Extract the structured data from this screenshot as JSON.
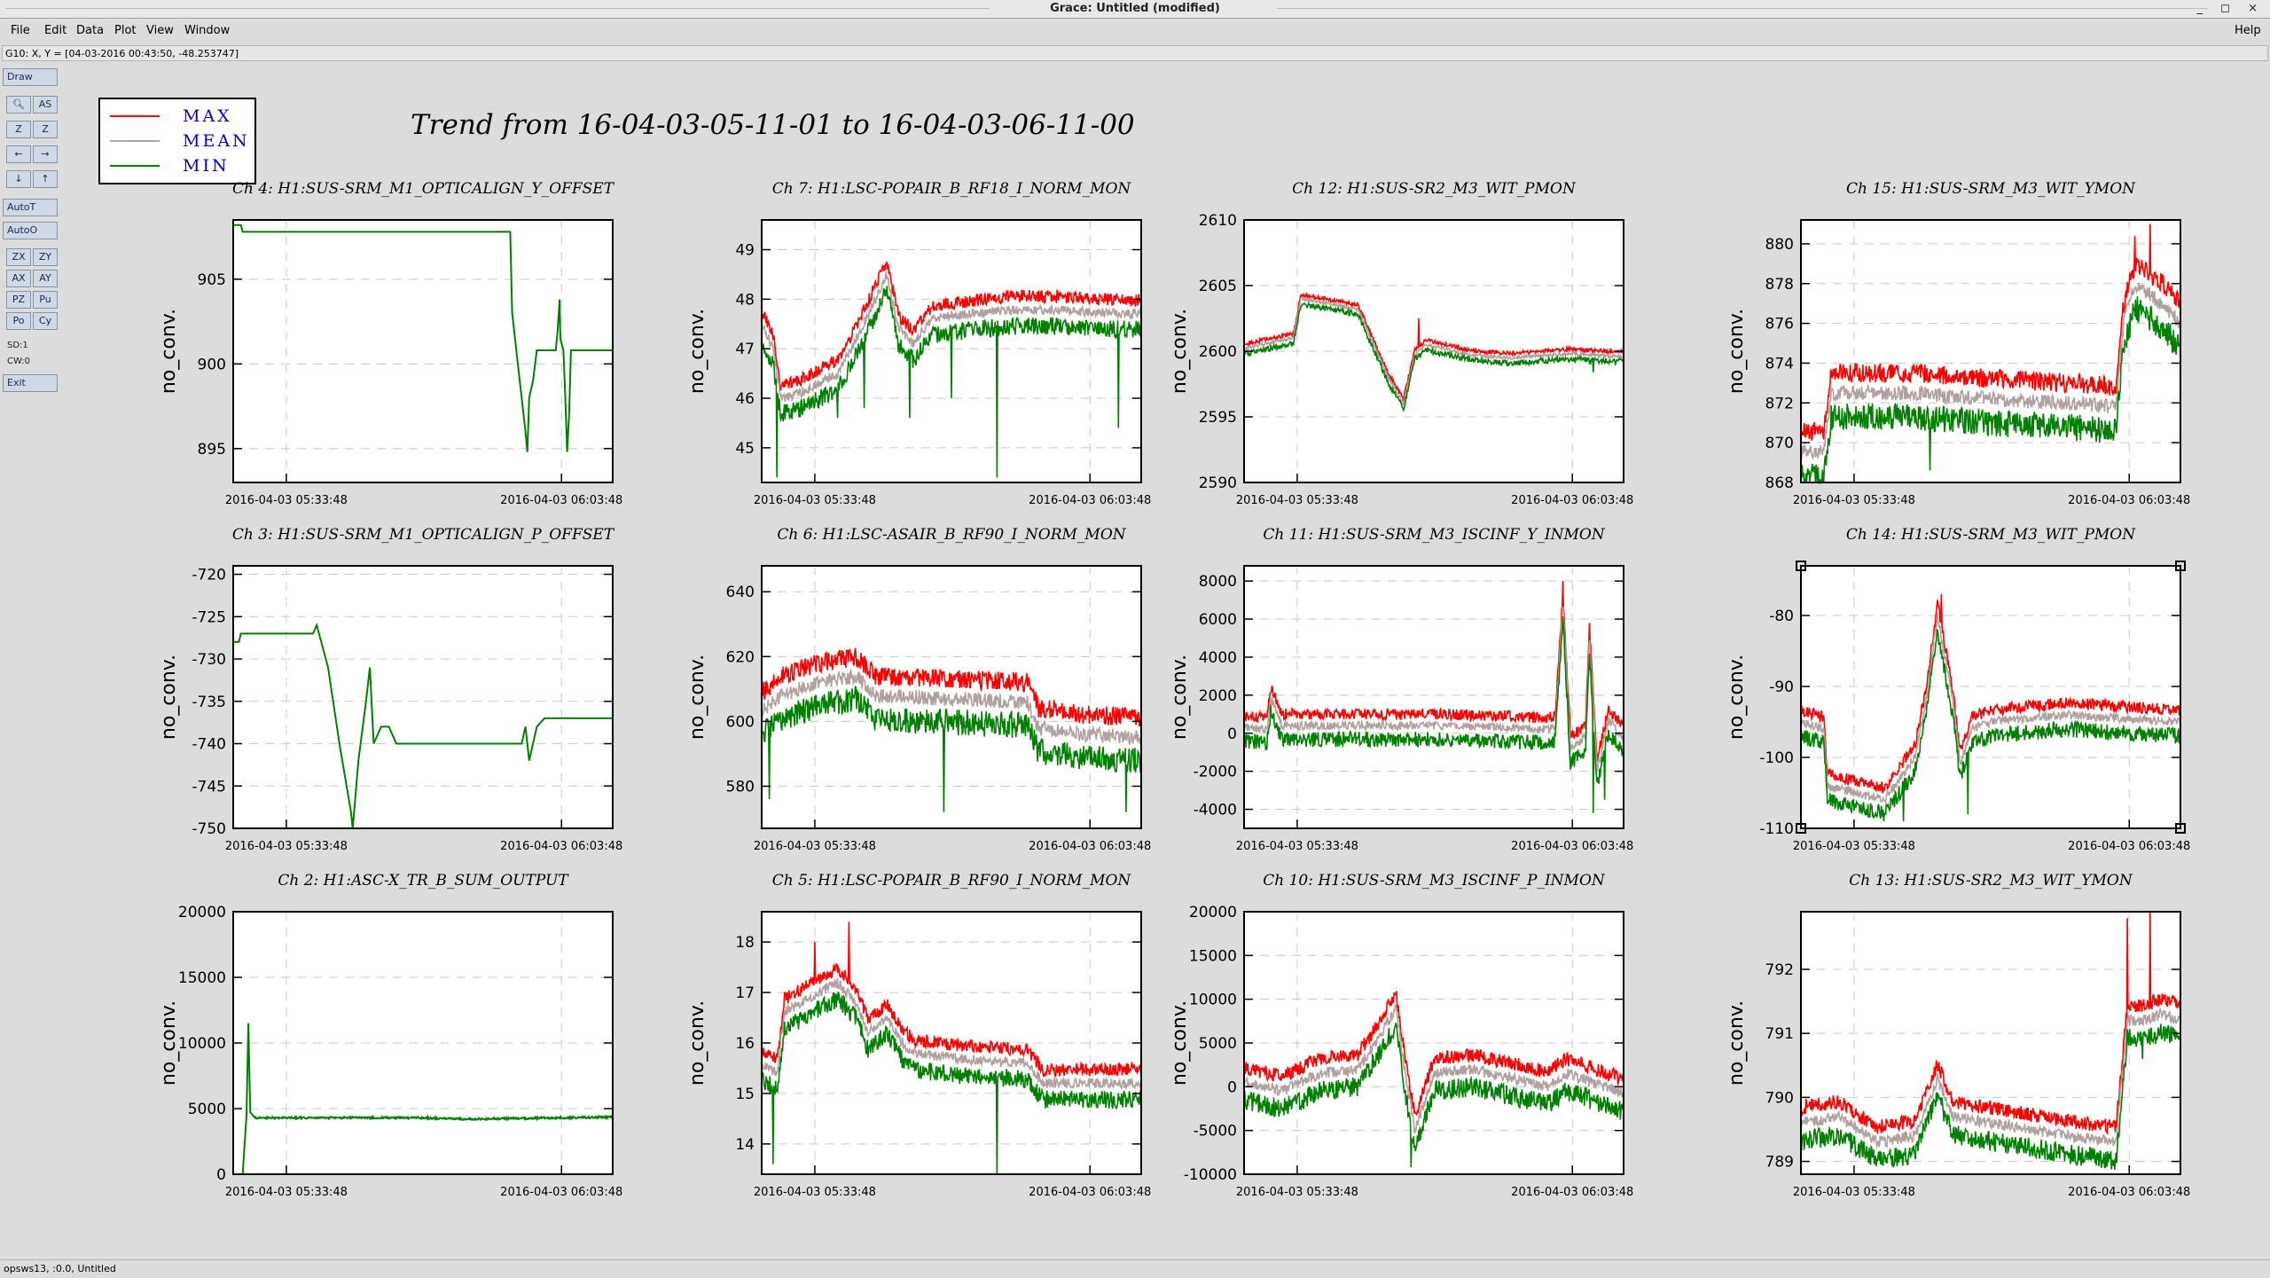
{
  "window": {
    "title": "Grace: Untitled (modified)",
    "controls": "_ ◻ ×"
  },
  "menu": {
    "file": "File",
    "edit": "Edit",
    "data": "Data",
    "plot": "Plot",
    "view": "View",
    "window": "Window",
    "help": "Help"
  },
  "locator": "G10: X, Y = [04-03-2016 00:43:50, -48.253747]",
  "toolbar": {
    "draw": "Draw",
    "autot": "AutoT",
    "autoo": "AutoO",
    "exit": "Exit",
    "sd": "SD:1",
    "cw": "CW:0",
    "zx": "ZX",
    "zy": "ZY",
    "ax": "AX",
    "ay": "AY",
    "pz": "PZ",
    "pu": "Pu",
    "po": "Po",
    "cy": "Cy",
    "as": "AS",
    "z": "Z"
  },
  "status": "opsws13, :0.0, Untitled",
  "main_title": "Trend from 16-04-03-05-11-01 to 16-04-03-06-11-00",
  "legend": {
    "max": "MAX",
    "mean": "MEAN",
    "min": "MIN"
  },
  "colors": {
    "max": "#ff0000",
    "mean": "#b0a0a0",
    "min": "#008000"
  },
  "x_ticks": [
    "2016-04-03 05:33:48",
    "2016-04-03 06:03:48"
  ],
  "chart_data": [
    {
      "type": "line",
      "title": "Ch 4: H1:SUS-SRM_M1_OPTICALIGN_Y_OFFSET",
      "ylabel": "no_conv.",
      "ylim": [
        893,
        908.5
      ],
      "yticks": [
        895,
        900,
        905
      ],
      "min_series": [
        [
          0,
          908.2
        ],
        [
          0.02,
          908.2
        ],
        [
          0.025,
          907.8
        ],
        [
          0.73,
          907.8
        ],
        [
          0.735,
          903
        ],
        [
          0.75,
          900
        ],
        [
          0.77,
          896
        ],
        [
          0.775,
          894.8
        ],
        [
          0.78,
          898
        ],
        [
          0.79,
          899
        ],
        [
          0.8,
          900.8
        ],
        [
          0.85,
          900.8
        ],
        [
          0.855,
          902
        ],
        [
          0.86,
          903.8
        ],
        [
          0.862,
          901.5
        ],
        [
          0.87,
          900.8
        ],
        [
          0.875,
          898
        ],
        [
          0.88,
          894.8
        ],
        [
          0.885,
          897
        ],
        [
          0.89,
          900.8
        ],
        [
          1,
          900.8
        ]
      ]
    },
    {
      "type": "line",
      "title": "Ch 7: H1:LSC-POPAIR_B_RF18_I_NORM_MON",
      "ylabel": "no_conv.",
      "ylim": [
        44.3,
        49.6
      ],
      "yticks": [
        45,
        46,
        47,
        48,
        49
      ],
      "base": [
        [
          0,
          47.5
        ],
        [
          0.03,
          47
        ],
        [
          0.05,
          46
        ],
        [
          0.1,
          46.1
        ],
        [
          0.2,
          46.5
        ],
        [
          0.25,
          47.2
        ],
        [
          0.3,
          48
        ],
        [
          0.33,
          48.5
        ],
        [
          0.36,
          47.4
        ],
        [
          0.4,
          47.1
        ],
        [
          0.45,
          47.6
        ],
        [
          0.55,
          47.7
        ],
        [
          0.7,
          47.8
        ],
        [
          1,
          47.7
        ]
      ],
      "noise": 0.4,
      "spikes": [
        [
          0.04,
          44.4
        ],
        [
          0.2,
          45.6
        ],
        [
          0.27,
          45.8
        ],
        [
          0.39,
          45.6
        ],
        [
          0.5,
          46
        ],
        [
          0.62,
          44.4
        ],
        [
          0.94,
          45.4
        ]
      ]
    },
    {
      "type": "line",
      "title": "Ch 12: H1:SUS-SR2_M3_WIT_PMON",
      "ylabel": "no_conv.",
      "ylim": [
        2590,
        2610
      ],
      "yticks": [
        2590,
        2595,
        2600,
        2605,
        2610
      ],
      "base": [
        [
          0,
          2600.2
        ],
        [
          0.13,
          2601
        ],
        [
          0.15,
          2604
        ],
        [
          0.3,
          2603.2
        ],
        [
          0.38,
          2598
        ],
        [
          0.42,
          2596
        ],
        [
          0.45,
          2599.8
        ],
        [
          0.48,
          2600.5
        ],
        [
          0.6,
          2599.7
        ],
        [
          0.7,
          2599.5
        ],
        [
          0.85,
          2599.8
        ],
        [
          1,
          2599.6
        ]
      ],
      "noise": 0.5,
      "spikes": [
        [
          0.46,
          2602.5
        ],
        [
          0.92,
          2598.4
        ]
      ]
    },
    {
      "type": "line",
      "title": "Ch 15: H1:SUS-SRM_M3_WIT_YMON",
      "ylabel": "no_conv.",
      "ylim": [
        868,
        881.2
      ],
      "yticks": [
        868,
        870,
        872,
        874,
        876,
        878,
        880
      ],
      "base": [
        [
          0,
          869.5
        ],
        [
          0.06,
          869.6
        ],
        [
          0.08,
          872.5
        ],
        [
          0.3,
          872.5
        ],
        [
          0.5,
          872.2
        ],
        [
          0.7,
          872
        ],
        [
          0.83,
          871.8
        ],
        [
          0.85,
          876
        ],
        [
          0.88,
          878
        ],
        [
          0.95,
          877
        ],
        [
          1,
          876
        ]
      ],
      "noise": 1.5,
      "spikes": [
        [
          0.88,
          880.4
        ],
        [
          0.92,
          881
        ],
        [
          0.34,
          868.6
        ]
      ]
    },
    {
      "type": "line",
      "title": "Ch 3: H1:SUS-SRM_M1_OPTICALIGN_P_OFFSET",
      "ylabel": "no_conv.",
      "ylim": [
        -750,
        -719
      ],
      "yticks": [
        -750,
        -745,
        -740,
        -735,
        -730,
        -725,
        -720
      ],
      "min_series": [
        [
          0,
          -728
        ],
        [
          0.015,
          -728
        ],
        [
          0.02,
          -727
        ],
        [
          0.21,
          -727
        ],
        [
          0.22,
          -726
        ],
        [
          0.25,
          -731
        ],
        [
          0.28,
          -740
        ],
        [
          0.31,
          -748
        ],
        [
          0.315,
          -750
        ],
        [
          0.33,
          -742
        ],
        [
          0.35,
          -735
        ],
        [
          0.36,
          -731
        ],
        [
          0.37,
          -740
        ],
        [
          0.39,
          -738
        ],
        [
          0.41,
          -738
        ],
        [
          0.43,
          -740
        ],
        [
          0.76,
          -740
        ],
        [
          0.77,
          -738
        ],
        [
          0.78,
          -742
        ],
        [
          0.8,
          -738
        ],
        [
          0.82,
          -737
        ],
        [
          1,
          -737
        ]
      ]
    },
    {
      "type": "line",
      "title": "Ch 6: H1:LSC-ASAIR_B_RF90_I_NORM_MON",
      "ylabel": "no_conv.",
      "ylim": [
        567,
        648
      ],
      "yticks": [
        580,
        600,
        620,
        640
      ],
      "base": [
        [
          0,
          603
        ],
        [
          0.05,
          608
        ],
        [
          0.15,
          612
        ],
        [
          0.25,
          614
        ],
        [
          0.3,
          608
        ],
        [
          0.5,
          607
        ],
        [
          0.7,
          606
        ],
        [
          0.73,
          598
        ],
        [
          0.85,
          596
        ],
        [
          1,
          595
        ]
      ],
      "noise": 9,
      "spikes": [
        [
          0.02,
          576
        ],
        [
          0.48,
          572
        ],
        [
          0.96,
          572
        ]
      ]
    },
    {
      "type": "line",
      "title": "Ch 11: H1:SUS-SRM_M3_ISCINF_Y_INMON",
      "ylabel": "no_conv.",
      "ylim": [
        -5000,
        8800
      ],
      "yticks": [
        -4000,
        -2000,
        0,
        2000,
        4000,
        6000,
        8000
      ],
      "base": [
        [
          0,
          300
        ],
        [
          0.06,
          200
        ],
        [
          0.07,
          1800
        ],
        [
          0.1,
          400
        ],
        [
          0.5,
          400
        ],
        [
          0.7,
          300
        ],
        [
          0.8,
          200
        ],
        [
          0.82,
          300
        ],
        [
          0.84,
          6800
        ],
        [
          0.86,
          -800
        ],
        [
          0.9,
          -200
        ],
        [
          0.91,
          5000
        ],
        [
          0.93,
          -2000
        ],
        [
          0.96,
          700
        ],
        [
          1,
          -300
        ]
      ],
      "noise": 900,
      "spikes": [
        [
          0.84,
          8000
        ],
        [
          0.92,
          -4200
        ],
        [
          0.95,
          -3500
        ]
      ]
    },
    {
      "type": "line",
      "title": "Ch 14: H1:SUS-SRM_M3_WIT_PMON",
      "ylabel": "no_conv.",
      "ylim": [
        -110,
        -73
      ],
      "yticks": [
        -110,
        -100,
        -90,
        -80
      ],
      "base": [
        [
          0,
          -95
        ],
        [
          0.06,
          -96
        ],
        [
          0.07,
          -104
        ],
        [
          0.22,
          -106
        ],
        [
          0.3,
          -100
        ],
        [
          0.33,
          -92
        ],
        [
          0.36,
          -80
        ],
        [
          0.4,
          -92
        ],
        [
          0.42,
          -101
        ],
        [
          0.45,
          -96
        ],
        [
          0.5,
          -95
        ],
        [
          0.7,
          -94
        ],
        [
          1,
          -95
        ]
      ],
      "noise": 2.5,
      "spikes": [
        [
          0.27,
          -109
        ],
        [
          0.37,
          -77
        ],
        [
          0.44,
          -108
        ]
      ]
    },
    {
      "type": "line",
      "title": "Ch 2: H1:ASC-X_TR_B_SUM_OUTPUT",
      "ylabel": "no_conv.",
      "ylim": [
        0,
        20000
      ],
      "yticks": [
        0,
        5000,
        10000,
        15000,
        20000
      ],
      "min_series": [
        [
          0,
          0
        ],
        [
          0.025,
          0
        ],
        [
          0.035,
          4500
        ],
        [
          0.04,
          11500
        ],
        [
          0.045,
          4700
        ],
        [
          0.06,
          4300
        ],
        [
          0.5,
          4300
        ],
        [
          0.6,
          4200
        ],
        [
          1,
          4350
        ]
      ],
      "noise": 150
    },
    {
      "type": "line",
      "title": "Ch 5: H1:LSC-POPAIR_B_RF90_I_NORM_MON",
      "ylabel": "no_conv.",
      "ylim": [
        13.4,
        18.6
      ],
      "yticks": [
        14,
        15,
        16,
        17,
        18
      ],
      "base": [
        [
          0,
          15.6
        ],
        [
          0.04,
          15.4
        ],
        [
          0.06,
          16.6
        ],
        [
          0.15,
          17
        ],
        [
          0.2,
          17.2
        ],
        [
          0.25,
          16.8
        ],
        [
          0.28,
          16.2
        ],
        [
          0.33,
          16.5
        ],
        [
          0.37,
          16
        ],
        [
          0.4,
          15.8
        ],
        [
          0.5,
          15.7
        ],
        [
          0.7,
          15.6
        ],
        [
          0.74,
          15.2
        ],
        [
          1,
          15.2
        ]
      ],
      "noise": 0.4,
      "spikes": [
        [
          0.03,
          13.6
        ],
        [
          0.14,
          18
        ],
        [
          0.23,
          18.4
        ],
        [
          0.62,
          13.4
        ]
      ]
    },
    {
      "type": "line",
      "title": "Ch 10: H1:SUS-SRM_M3_ISCINF_P_INMON",
      "ylabel": "no_conv.",
      "ylim": [
        -10000,
        20000
      ],
      "yticks": [
        -10000,
        -5000,
        0,
        5000,
        10000,
        15000,
        20000
      ],
      "base": [
        [
          0,
          500
        ],
        [
          0.1,
          -500
        ],
        [
          0.2,
          1500
        ],
        [
          0.3,
          2000
        ],
        [
          0.36,
          6000
        ],
        [
          0.4,
          9000
        ],
        [
          0.43,
          0
        ],
        [
          0.45,
          -5000
        ],
        [
          0.5,
          1500
        ],
        [
          0.6,
          2000
        ],
        [
          0.7,
          1000
        ],
        [
          0.8,
          0
        ],
        [
          0.85,
          1500
        ],
        [
          0.95,
          0
        ],
        [
          1,
          -800
        ]
      ],
      "noise": 2500,
      "spikes": [
        [
          0.44,
          -9200
        ],
        [
          0.38,
          10000
        ]
      ]
    },
    {
      "type": "line",
      "title": "Ch 13: H1:SUS-SR2_M3_WIT_YMON",
      "ylabel": "no_conv.",
      "ylim": [
        788.8,
        792.9
      ],
      "yticks": [
        789,
        790,
        791,
        792
      ],
      "base": [
        [
          0,
          789.6
        ],
        [
          0.1,
          789.7
        ],
        [
          0.2,
          789.3
        ],
        [
          0.3,
          789.4
        ],
        [
          0.36,
          790.3
        ],
        [
          0.4,
          789.7
        ],
        [
          0.5,
          789.6
        ],
        [
          0.7,
          789.4
        ],
        [
          0.83,
          789.3
        ],
        [
          0.86,
          791.2
        ],
        [
          0.9,
          791.2
        ],
        [
          0.95,
          791.3
        ],
        [
          1,
          791.2
        ]
      ],
      "noise": 0.35,
      "spikes": [
        [
          0.86,
          792.8
        ],
        [
          0.92,
          792.9
        ],
        [
          0.9,
          790.6
        ]
      ]
    }
  ]
}
